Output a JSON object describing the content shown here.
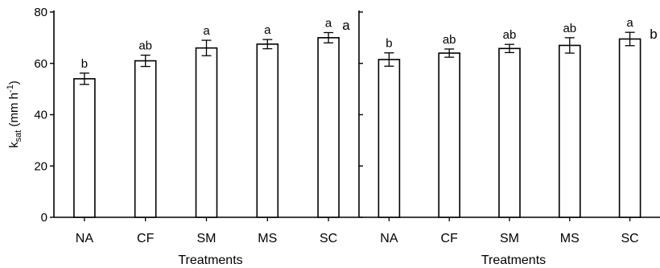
{
  "figure": {
    "y_axis_label_main": "k",
    "y_axis_label_sub": "sat",
    "y_axis_label_units": " (mm h",
    "y_axis_label_sup": "-1",
    "y_axis_label_close": ")"
  },
  "chart_data": [
    {
      "type": "bar",
      "panel_label": "a",
      "xlabel": "Treatments",
      "ylabel": "ksat (mm h-1)",
      "ylim": [
        0,
        80
      ],
      "yticks": [
        0,
        20,
        40,
        60,
        80
      ],
      "categories": [
        "NA",
        "CF",
        "SM",
        "MS",
        "SC"
      ],
      "values": [
        54,
        61,
        66,
        67.5,
        70
      ],
      "errors": [
        2.2,
        2.2,
        3,
        1.8,
        2
      ],
      "letters": [
        "b",
        "ab",
        "a",
        "a",
        "a"
      ]
    },
    {
      "type": "bar",
      "panel_label": "b",
      "xlabel": "Treatments",
      "ylabel": "",
      "ylim": [
        0,
        80
      ],
      "yticks": [
        0,
        20,
        40,
        60,
        80
      ],
      "categories": [
        "NA",
        "CF",
        "SM",
        "MS",
        "SC"
      ],
      "values": [
        61.5,
        64,
        65.8,
        67,
        69.5
      ],
      "errors": [
        2.6,
        1.6,
        1.6,
        3,
        2.6
      ],
      "letters": [
        "b",
        "ab",
        "ab",
        "ab",
        "a"
      ]
    }
  ]
}
